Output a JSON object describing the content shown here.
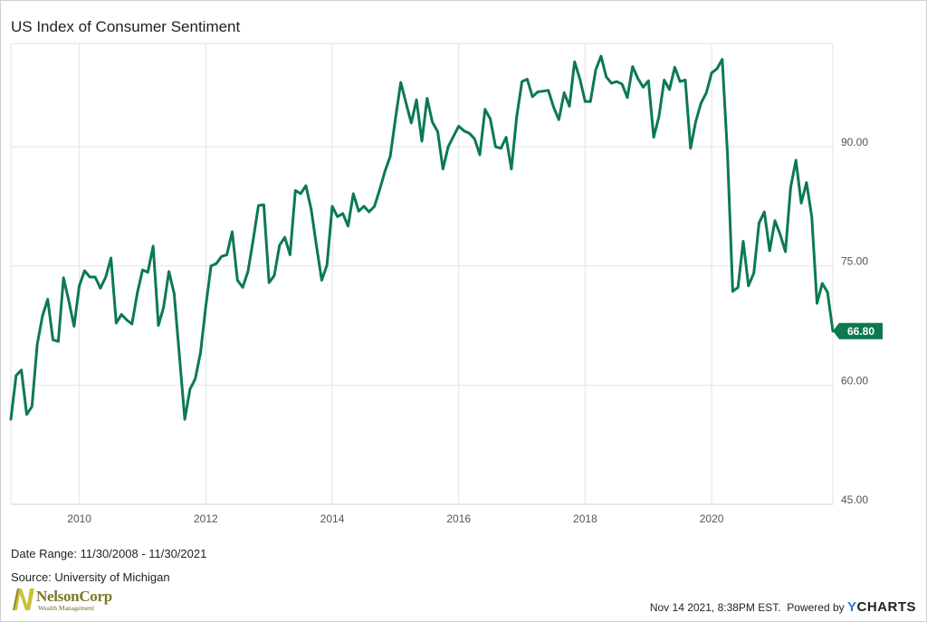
{
  "colors": {
    "line": "#0b7a4f",
    "grid": "#e3e3e3",
    "brand_blue": "#2a7bd4",
    "logo_olive": "#7a7a2a"
  },
  "chart_data": {
    "type": "line",
    "title": "US Index of Consumer Sentiment",
    "xlabel": "",
    "ylabel": "",
    "x_range": [
      2008.917,
      2021.917
    ],
    "ylim": [
      45,
      103
    ],
    "x_ticks": [
      {
        "value": 2010,
        "label": "2010"
      },
      {
        "value": 2012,
        "label": "2012"
      },
      {
        "value": 2014,
        "label": "2014"
      },
      {
        "value": 2016,
        "label": "2016"
      },
      {
        "value": 2018,
        "label": "2018"
      },
      {
        "value": 2020,
        "label": "2020"
      }
    ],
    "y_ticks": [
      {
        "value": 45,
        "label": "45.00"
      },
      {
        "value": 60,
        "label": "60.00"
      },
      {
        "value": 75,
        "label": "75.00"
      },
      {
        "value": 90,
        "label": "90.00"
      }
    ],
    "grid": true,
    "last_value_label": "66.80",
    "series": [
      {
        "values": [
          [
            2008.917,
            55.7
          ],
          [
            2009.0,
            61.2
          ],
          [
            2009.083,
            61.9
          ],
          [
            2009.167,
            56.3
          ],
          [
            2009.25,
            57.3
          ],
          [
            2009.333,
            65.1
          ],
          [
            2009.417,
            68.7
          ],
          [
            2009.5,
            70.8
          ],
          [
            2009.583,
            65.7
          ],
          [
            2009.667,
            65.5
          ],
          [
            2009.75,
            73.5
          ],
          [
            2009.833,
            70.6
          ],
          [
            2009.917,
            67.4
          ],
          [
            2010.0,
            72.5
          ],
          [
            2010.083,
            74.4
          ],
          [
            2010.167,
            73.6
          ],
          [
            2010.25,
            73.6
          ],
          [
            2010.333,
            72.2
          ],
          [
            2010.417,
            73.6
          ],
          [
            2010.5,
            76.0
          ],
          [
            2010.583,
            67.8
          ],
          [
            2010.667,
            68.9
          ],
          [
            2010.75,
            68.2
          ],
          [
            2010.833,
            67.7
          ],
          [
            2010.917,
            71.6
          ],
          [
            2011.0,
            74.5
          ],
          [
            2011.083,
            74.2
          ],
          [
            2011.167,
            77.5
          ],
          [
            2011.25,
            67.5
          ],
          [
            2011.333,
            69.8
          ],
          [
            2011.417,
            74.3
          ],
          [
            2011.5,
            71.5
          ],
          [
            2011.583,
            63.7
          ],
          [
            2011.667,
            55.7
          ],
          [
            2011.75,
            59.5
          ],
          [
            2011.833,
            60.8
          ],
          [
            2011.917,
            64.1
          ],
          [
            2012.0,
            69.9
          ],
          [
            2012.083,
            75.0
          ],
          [
            2012.167,
            75.3
          ],
          [
            2012.25,
            76.2
          ],
          [
            2012.333,
            76.4
          ],
          [
            2012.417,
            79.3
          ],
          [
            2012.5,
            73.2
          ],
          [
            2012.583,
            72.3
          ],
          [
            2012.667,
            74.3
          ],
          [
            2012.75,
            78.3
          ],
          [
            2012.833,
            82.6
          ],
          [
            2012.917,
            82.7
          ],
          [
            2013.0,
            72.9
          ],
          [
            2013.083,
            73.8
          ],
          [
            2013.167,
            77.6
          ],
          [
            2013.25,
            78.6
          ],
          [
            2013.333,
            76.4
          ],
          [
            2013.417,
            84.5
          ],
          [
            2013.5,
            84.1
          ],
          [
            2013.583,
            85.1
          ],
          [
            2013.667,
            82.1
          ],
          [
            2013.75,
            77.5
          ],
          [
            2013.833,
            73.2
          ],
          [
            2013.917,
            75.1
          ],
          [
            2014.0,
            82.5
          ],
          [
            2014.083,
            81.2
          ],
          [
            2014.167,
            81.6
          ],
          [
            2014.25,
            80.0
          ],
          [
            2014.333,
            84.1
          ],
          [
            2014.417,
            81.9
          ],
          [
            2014.5,
            82.5
          ],
          [
            2014.583,
            81.8
          ],
          [
            2014.667,
            82.5
          ],
          [
            2014.75,
            84.6
          ],
          [
            2014.833,
            86.9
          ],
          [
            2014.917,
            88.8
          ],
          [
            2015.0,
            93.6
          ],
          [
            2015.083,
            98.1
          ],
          [
            2015.167,
            95.5
          ],
          [
            2015.25,
            93.0
          ],
          [
            2015.333,
            95.9
          ],
          [
            2015.417,
            90.7
          ],
          [
            2015.5,
            96.1
          ],
          [
            2015.583,
            93.1
          ],
          [
            2015.667,
            91.9
          ],
          [
            2015.75,
            87.2
          ],
          [
            2015.833,
            90.0
          ],
          [
            2015.917,
            91.3
          ],
          [
            2016.0,
            92.6
          ],
          [
            2016.083,
            92.0
          ],
          [
            2016.167,
            91.7
          ],
          [
            2016.25,
            91.0
          ],
          [
            2016.333,
            89.0
          ],
          [
            2016.417,
            94.7
          ],
          [
            2016.5,
            93.5
          ],
          [
            2016.583,
            90.0
          ],
          [
            2016.667,
            89.8
          ],
          [
            2016.75,
            91.2
          ],
          [
            2016.833,
            87.2
          ],
          [
            2016.917,
            93.8
          ],
          [
            2017.0,
            98.2
          ],
          [
            2017.083,
            98.5
          ],
          [
            2017.167,
            96.3
          ],
          [
            2017.25,
            96.9
          ],
          [
            2017.333,
            97.0
          ],
          [
            2017.417,
            97.1
          ],
          [
            2017.5,
            95.0
          ],
          [
            2017.583,
            93.4
          ],
          [
            2017.667,
            96.8
          ],
          [
            2017.75,
            95.1
          ],
          [
            2017.833,
            100.7
          ],
          [
            2017.917,
            98.5
          ],
          [
            2018.0,
            95.7
          ],
          [
            2018.083,
            95.7
          ],
          [
            2018.167,
            99.7
          ],
          [
            2018.25,
            101.4
          ],
          [
            2018.333,
            98.8
          ],
          [
            2018.417,
            98.0
          ],
          [
            2018.5,
            98.2
          ],
          [
            2018.583,
            97.9
          ],
          [
            2018.667,
            96.2
          ],
          [
            2018.75,
            100.1
          ],
          [
            2018.833,
            98.6
          ],
          [
            2018.917,
            97.5
          ],
          [
            2019.0,
            98.3
          ],
          [
            2019.083,
            91.2
          ],
          [
            2019.167,
            93.8
          ],
          [
            2019.25,
            98.4
          ],
          [
            2019.333,
            97.2
          ],
          [
            2019.417,
            100.0
          ],
          [
            2019.5,
            98.2
          ],
          [
            2019.583,
            98.4
          ],
          [
            2019.667,
            89.8
          ],
          [
            2019.75,
            93.2
          ],
          [
            2019.833,
            95.5
          ],
          [
            2019.917,
            96.8
          ],
          [
            2020.0,
            99.3
          ],
          [
            2020.083,
            99.8
          ],
          [
            2020.167,
            101.0
          ],
          [
            2020.25,
            89.1
          ],
          [
            2020.333,
            71.8
          ],
          [
            2020.417,
            72.3
          ],
          [
            2020.5,
            78.1
          ],
          [
            2020.583,
            72.5
          ],
          [
            2020.667,
            74.1
          ],
          [
            2020.75,
            80.4
          ],
          [
            2020.833,
            81.8
          ],
          [
            2020.917,
            76.9
          ],
          [
            2021.0,
            80.7
          ],
          [
            2021.083,
            79.0
          ],
          [
            2021.167,
            76.8
          ],
          [
            2021.25,
            84.9
          ],
          [
            2021.333,
            88.3
          ],
          [
            2021.417,
            82.9
          ],
          [
            2021.5,
            85.5
          ],
          [
            2021.583,
            81.2
          ],
          [
            2021.667,
            70.3
          ],
          [
            2021.75,
            72.8
          ],
          [
            2021.833,
            71.7
          ],
          [
            2021.917,
            66.8
          ]
        ]
      }
    ]
  },
  "meta": {
    "date_range": "Date Range: 11/30/2008 - 11/30/2021",
    "source": "Source: University of Michigan"
  },
  "logo": {
    "name": "NelsonCorp",
    "subtitle": "Wealth Management"
  },
  "footer": {
    "timestamp": "Nov 14 2021, 8:38PM EST.",
    "powered_by": "Powered by",
    "brand_y": "Y",
    "brand_rest": "CHARTS"
  }
}
